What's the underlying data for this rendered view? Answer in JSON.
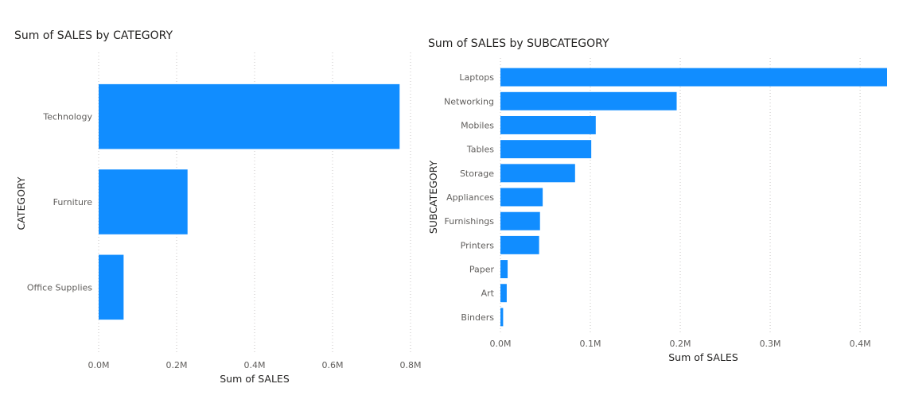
{
  "chart_data": [
    {
      "type": "bar",
      "orientation": "horizontal",
      "title": "Sum of SALES by CATEGORY",
      "xlabel": "Sum of SALES",
      "ylabel": "CATEGORY",
      "categories": [
        "Technology",
        "Furniture",
        "Office Supplies"
      ],
      "values": [
        772000,
        228000,
        64000
      ],
      "xlim": [
        0,
        800000
      ],
      "xticks": [
        0,
        200000,
        400000,
        600000,
        800000
      ],
      "xtick_labels": [
        "0.0M",
        "0.2M",
        "0.4M",
        "0.6M",
        "0.8M"
      ],
      "grid": true,
      "bar_color": "#118DFF"
    },
    {
      "type": "bar",
      "orientation": "horizontal",
      "title": "Sum of SALES by SUBCATEGORY",
      "xlabel": "Sum of SALES",
      "ylabel": "SUBCATEGORY",
      "categories": [
        "Laptops",
        "Networking",
        "Mobiles",
        "Tables",
        "Storage",
        "Appliances",
        "Furnishings",
        "Printers",
        "Paper",
        "Art",
        "Binders"
      ],
      "values": [
        430000,
        196000,
        106000,
        101000,
        83000,
        47000,
        44000,
        43000,
        8000,
        7000,
        3000
      ],
      "xlim": [
        0,
        430000
      ],
      "xticks": [
        0,
        100000,
        200000,
        300000,
        400000
      ],
      "xtick_labels": [
        "0.0M",
        "0.1M",
        "0.2M",
        "0.3M",
        "0.4M"
      ],
      "grid": true,
      "bar_color": "#118DFF"
    }
  ]
}
